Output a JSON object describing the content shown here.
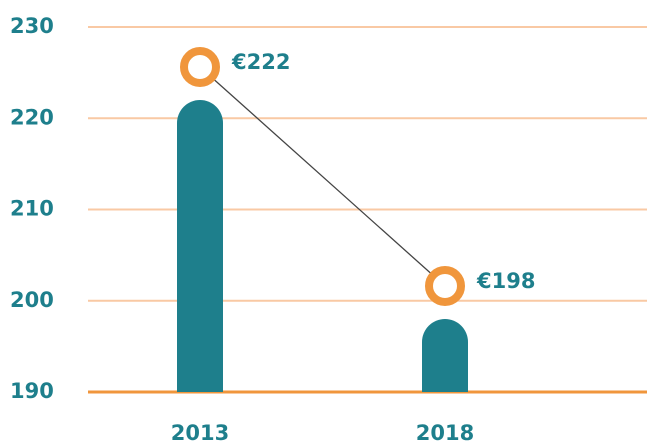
{
  "chart_data": {
    "type": "bar",
    "categories": [
      "2013",
      "2018"
    ],
    "values": [
      222,
      198
    ],
    "value_labels": [
      "€222",
      "€198"
    ],
    "color": "#1e7f8c",
    "marker_color": "#f0963c",
    "grid_color": "#f9c9a4",
    "ylim": [
      190,
      230
    ],
    "yticks": [
      190,
      200,
      210,
      220,
      230
    ],
    "grid": true
  }
}
